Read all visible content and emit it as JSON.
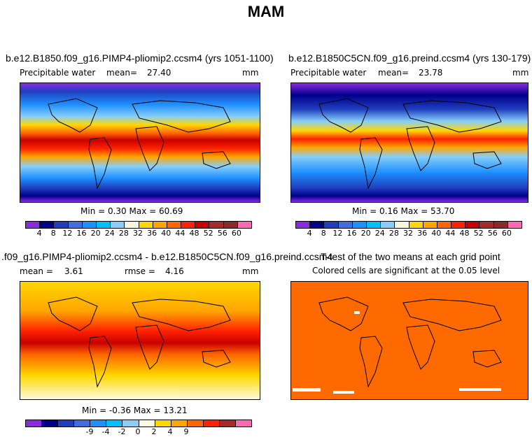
{
  "figure": {
    "title": "MAM"
  },
  "panel1": {
    "title": "b.e12.B1850.f09_g16.PIMP4-pliomip2.ccsm4 (yrs 1051-1100)",
    "variable": "Precipitable water",
    "mean_label": "mean=",
    "mean": "27.40",
    "units": "mm",
    "minmax": "Min =   0.30 Max =  60.69",
    "ticks": [
      "4",
      "8",
      "12",
      "16",
      "20",
      "24",
      "28",
      "32",
      "36",
      "40",
      "44",
      "48",
      "52",
      "56",
      "60"
    ]
  },
  "panel2": {
    "title": "b.e12.B1850C5CN.f09_g16.preind.ccsm4 (yrs 130-179)",
    "variable": "Precipitable water",
    "mean_label": "mean=",
    "mean": "23.78",
    "units": "mm",
    "minmax": "Min =   0.16 Max =  53.70",
    "ticks": [
      "4",
      "8",
      "12",
      "16",
      "20",
      "24",
      "28",
      "32",
      "36",
      "40",
      "44",
      "48",
      "52",
      "56",
      "60"
    ]
  },
  "panel3": {
    "title": ".f09_g16.PIMP4-pliomip2.ccsm4 - b.e12.B1850C5CN.f09_g16.preind.ccsm4",
    "mean_label": "mean =",
    "mean": "3.61",
    "rmse_label": "rmse =",
    "rmse": "4.16",
    "units": "mm",
    "minmax": "Min =  -0.36 Max =  13.21",
    "ticks": [
      "-9",
      "-4",
      "-2",
      "0",
      "2",
      "4",
      "9"
    ]
  },
  "panel4": {
    "title": "T-test of the two means at each grid point",
    "subtitle": "Colored cells are significant at the 0.05 level"
  },
  "colors": {
    "abs_scale": [
      "#8a2be2",
      "#00008b",
      "#1f3fbf",
      "#3f6fdf",
      "#1e90ff",
      "#00bfff",
      "#87cefa",
      "#f5f5dc",
      "#ffd700",
      "#ffa500",
      "#ff6600",
      "#ff2200",
      "#c80000",
      "#a52a2a",
      "#8b2a2a",
      "#ff69b4"
    ],
    "diff_scale": [
      "#8a2be2",
      "#00008b",
      "#1f3fbf",
      "#3f6fdf",
      "#1e90ff",
      "#00bfff",
      "#87cefa",
      "#fffbe0",
      "#ffd700",
      "#ffa500",
      "#ff6600",
      "#ff2200",
      "#a52a2a",
      "#ff69b4"
    ],
    "ttest": "#ff6a00"
  }
}
